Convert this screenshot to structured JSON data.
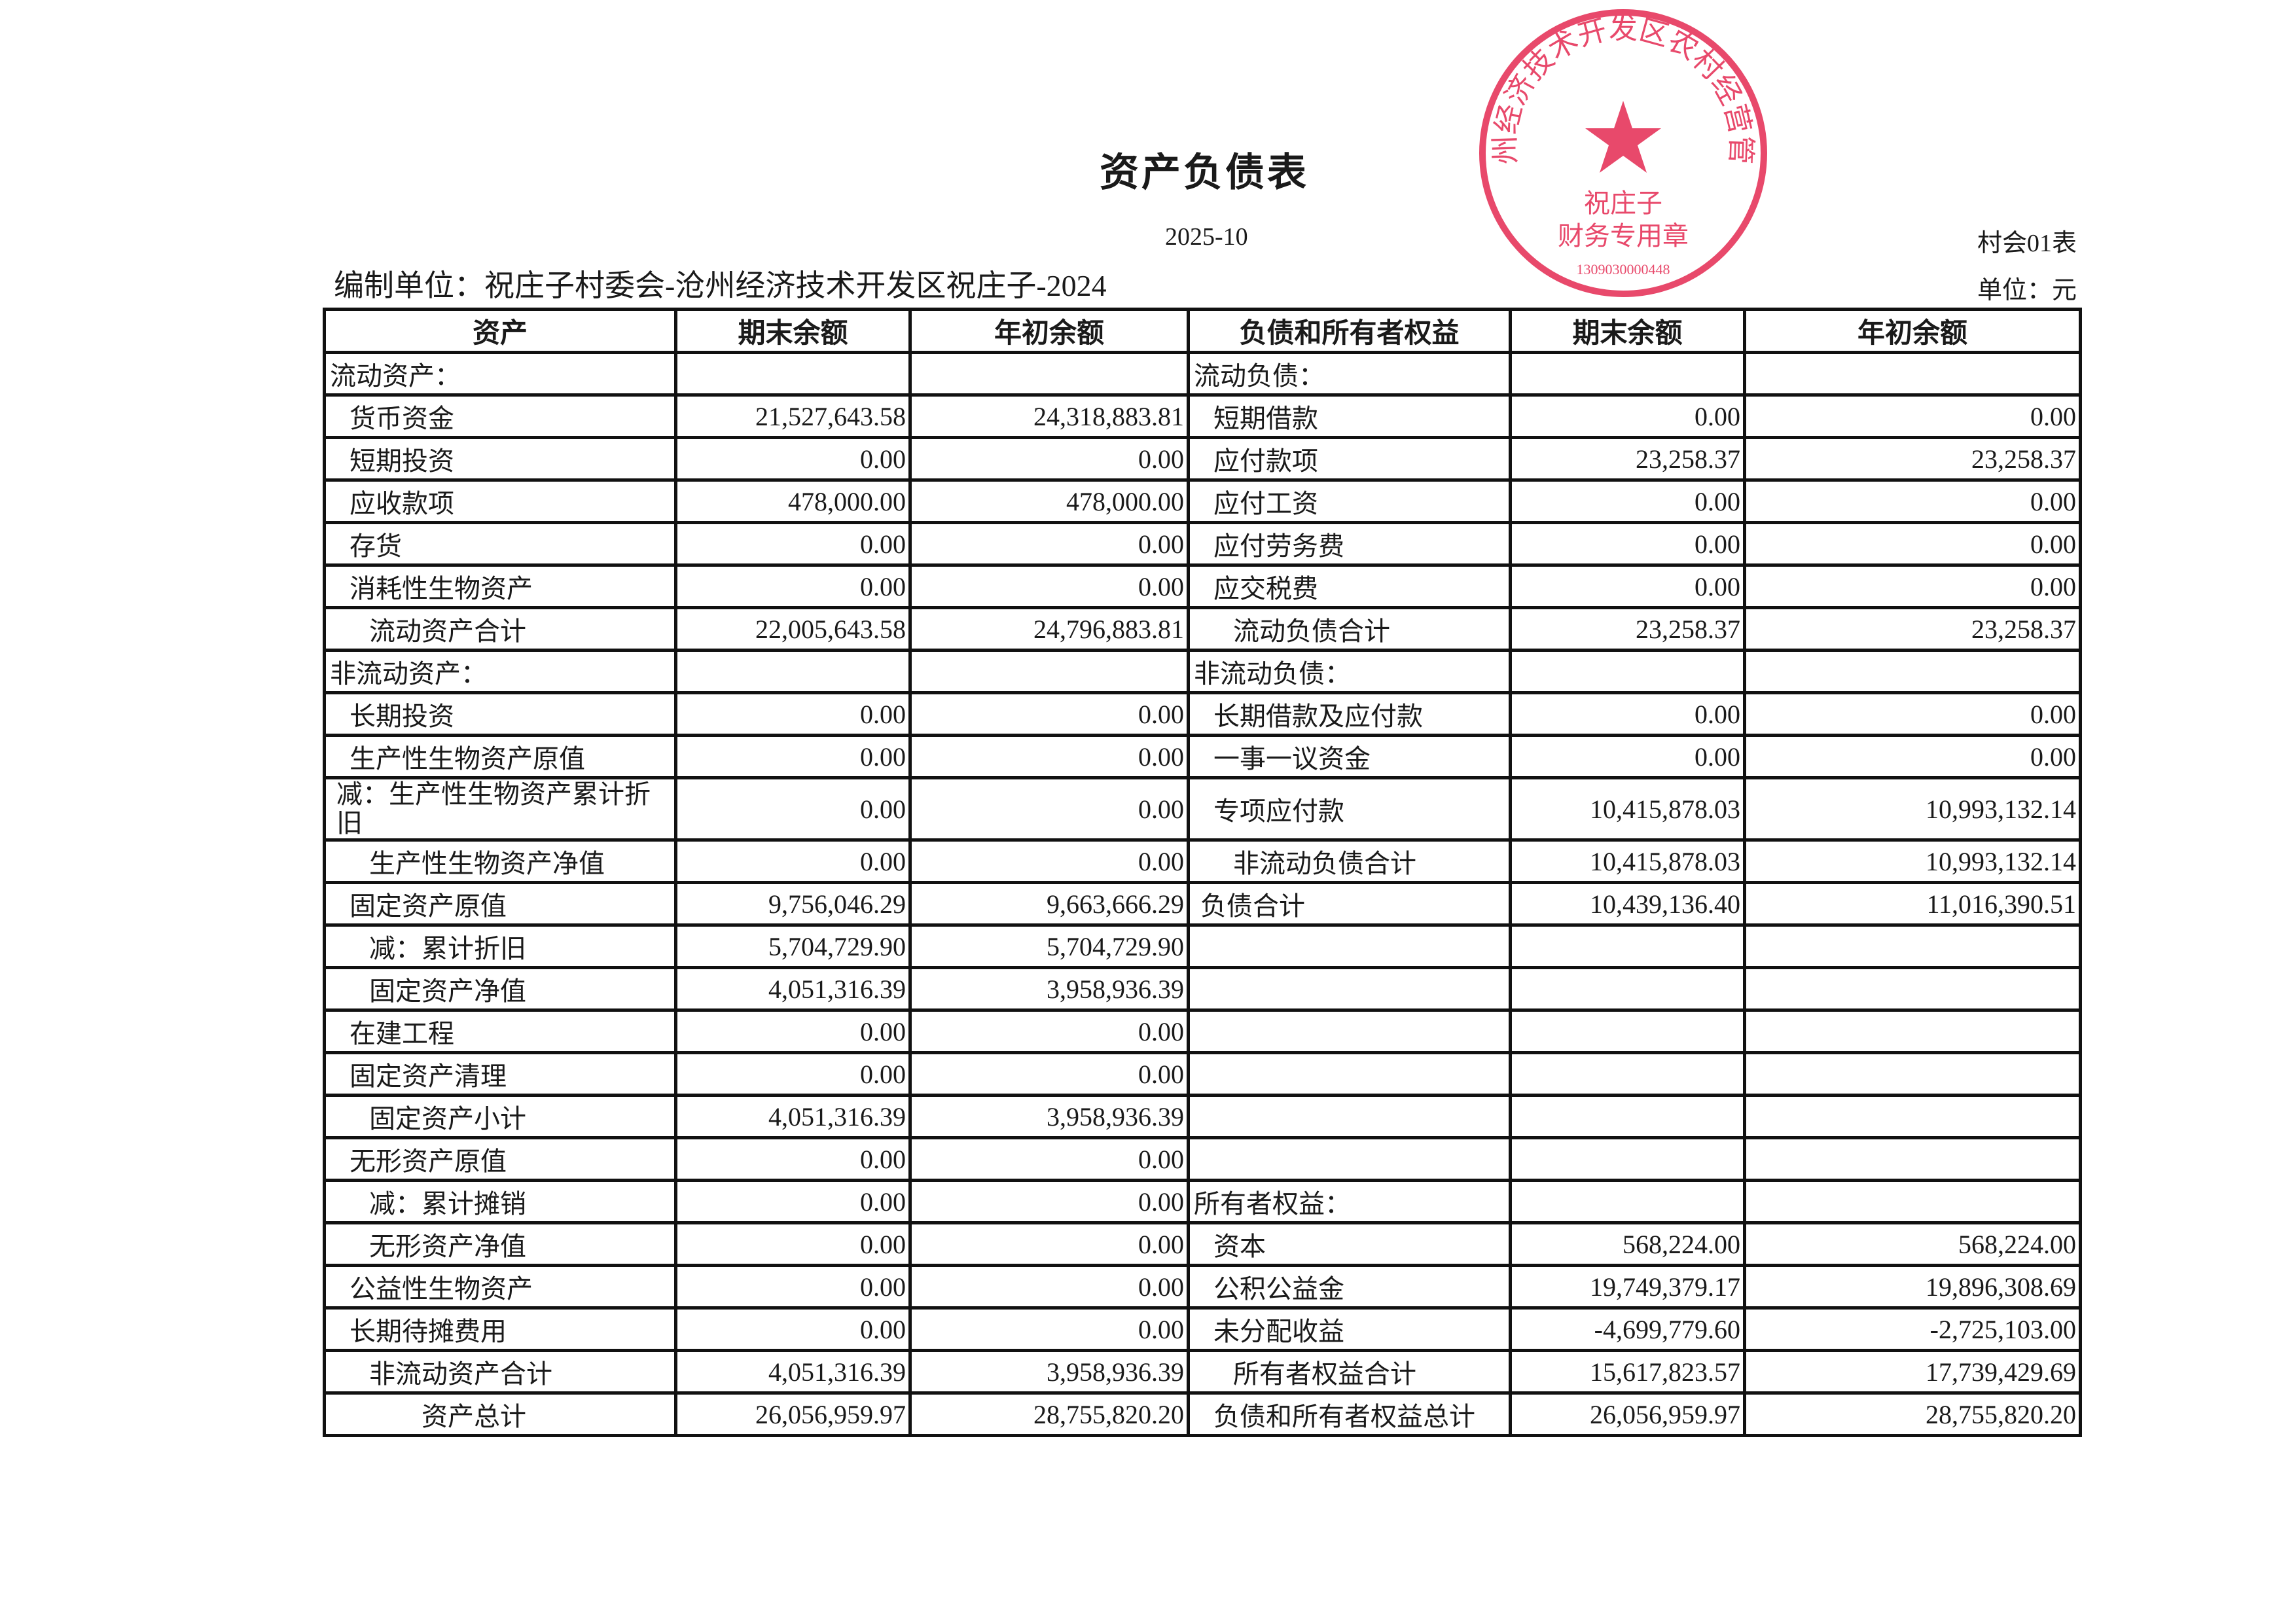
{
  "title": "资产负债表",
  "period": "2025-10",
  "form_no": "村会01表",
  "unit": "单位：元",
  "org": "编制单位：祝庄子村委会-沧州经济技术开发区祝庄子-2024",
  "stamp": {
    "outer_text": "沧州经济技术开发区农村经营管理",
    "center_text": "祝庄子",
    "bottom_text": "财务专用章",
    "number": "1309030000448",
    "color": "#e8496b"
  },
  "headers": [
    "资产",
    "期末余额",
    "年初余额",
    "负债和所有者权益",
    "期末余额",
    "年初余额"
  ],
  "rows": [
    {
      "l": [
        "流动资产：",
        "",
        ""
      ],
      "r": [
        "流动负债：",
        "",
        ""
      ],
      "li": 0,
      "ri": 0
    },
    {
      "l": [
        "货币资金",
        "21,527,643.58",
        "24,318,883.81"
      ],
      "r": [
        "短期借款",
        "0.00",
        "0.00"
      ],
      "li": 1,
      "ri": 1
    },
    {
      "l": [
        "短期投资",
        "0.00",
        "0.00"
      ],
      "r": [
        "应付款项",
        "23,258.37",
        "23,258.37"
      ],
      "li": 1,
      "ri": 1
    },
    {
      "l": [
        "应收款项",
        "478,000.00",
        "478,000.00"
      ],
      "r": [
        "应付工资",
        "0.00",
        "0.00"
      ],
      "li": 1,
      "ri": 1
    },
    {
      "l": [
        "存货",
        "0.00",
        "0.00"
      ],
      "r": [
        "应付劳务费",
        "0.00",
        "0.00"
      ],
      "li": 1,
      "ri": 1
    },
    {
      "l": [
        "消耗性生物资产",
        "0.00",
        "0.00"
      ],
      "r": [
        "应交税费",
        "0.00",
        "0.00"
      ],
      "li": 1,
      "ri": 1
    },
    {
      "l": [
        "流动资产合计",
        "22,005,643.58",
        "24,796,883.81"
      ],
      "r": [
        "流动负债合计",
        "23,258.37",
        "23,258.37"
      ],
      "li": 2,
      "ri": 2
    },
    {
      "l": [
        "非流动资产：",
        "",
        ""
      ],
      "r": [
        "非流动负债：",
        "",
        ""
      ],
      "li": 0,
      "ri": 0
    },
    {
      "l": [
        "长期投资",
        "0.00",
        "0.00"
      ],
      "r": [
        "长期借款及应付款",
        "0.00",
        "0.00"
      ],
      "li": 1,
      "ri": 1
    },
    {
      "l": [
        "生产性生物资产原值",
        "0.00",
        "0.00"
      ],
      "r": [
        "一事一议资金",
        "0.00",
        "0.00"
      ],
      "li": 1,
      "ri": 1
    },
    {
      "l": [
        "减：生产性生物资产累计折旧",
        "0.00",
        "0.00"
      ],
      "r": [
        "专项应付款",
        "10,415,878.03",
        "10,993,132.14"
      ],
      "li": 3,
      "ri": 1,
      "tall": true
    },
    {
      "l": [
        "生产性生物资产净值",
        "0.00",
        "0.00"
      ],
      "r": [
        "非流动负债合计",
        "10,415,878.03",
        "10,993,132.14"
      ],
      "li": 2,
      "ri": 2
    },
    {
      "l": [
        "固定资产原值",
        "9,756,046.29",
        "9,663,666.29"
      ],
      "r": [
        "负债合计",
        "10,439,136.40",
        "11,016,390.51"
      ],
      "li": 1,
      "ri": 3
    },
    {
      "l": [
        "减：累计折旧",
        "5,704,729.90",
        "5,704,729.90"
      ],
      "r": [
        "",
        "",
        ""
      ],
      "li": 2,
      "ri": 0
    },
    {
      "l": [
        "固定资产净值",
        "4,051,316.39",
        "3,958,936.39"
      ],
      "r": [
        "",
        "",
        ""
      ],
      "li": 2,
      "ri": 0
    },
    {
      "l": [
        "在建工程",
        "0.00",
        "0.00"
      ],
      "r": [
        "",
        "",
        ""
      ],
      "li": 1,
      "ri": 0
    },
    {
      "l": [
        "固定资产清理",
        "0.00",
        "0.00"
      ],
      "r": [
        "",
        "",
        ""
      ],
      "li": 1,
      "ri": 0
    },
    {
      "l": [
        "固定资产小计",
        "4,051,316.39",
        "3,958,936.39"
      ],
      "r": [
        "",
        "",
        ""
      ],
      "li": 2,
      "ri": 0
    },
    {
      "l": [
        "无形资产原值",
        "0.00",
        "0.00"
      ],
      "r": [
        "",
        "",
        ""
      ],
      "li": 1,
      "ri": 0
    },
    {
      "l": [
        "减：累计摊销",
        "0.00",
        "0.00"
      ],
      "r": [
        "所有者权益：",
        "",
        ""
      ],
      "li": 2,
      "ri": 0
    },
    {
      "l": [
        "无形资产净值",
        "0.00",
        "0.00"
      ],
      "r": [
        "资本",
        "568,224.00",
        "568,224.00"
      ],
      "li": 2,
      "ri": 1
    },
    {
      "l": [
        "公益性生物资产",
        "0.00",
        "0.00"
      ],
      "r": [
        "公积公益金",
        "19,749,379.17",
        "19,896,308.69"
      ],
      "li": 1,
      "ri": 1
    },
    {
      "l": [
        "长期待摊费用",
        "0.00",
        "0.00"
      ],
      "r": [
        "未分配收益",
        "-4,699,779.60",
        "-2,725,103.00"
      ],
      "li": 1,
      "ri": 1
    },
    {
      "l": [
        "非流动资产合计",
        "4,051,316.39",
        "3,958,936.39"
      ],
      "r": [
        "所有者权益合计",
        "15,617,823.57",
        "17,739,429.69"
      ],
      "li": 2,
      "ri": 2
    },
    {
      "l": [
        "资产总计",
        "26,056,959.97",
        "28,755,820.20"
      ],
      "r": [
        "负债和所有者权益总计",
        "26,056,959.97",
        "28,755,820.20"
      ],
      "li": 4,
      "ri": 1
    }
  ]
}
